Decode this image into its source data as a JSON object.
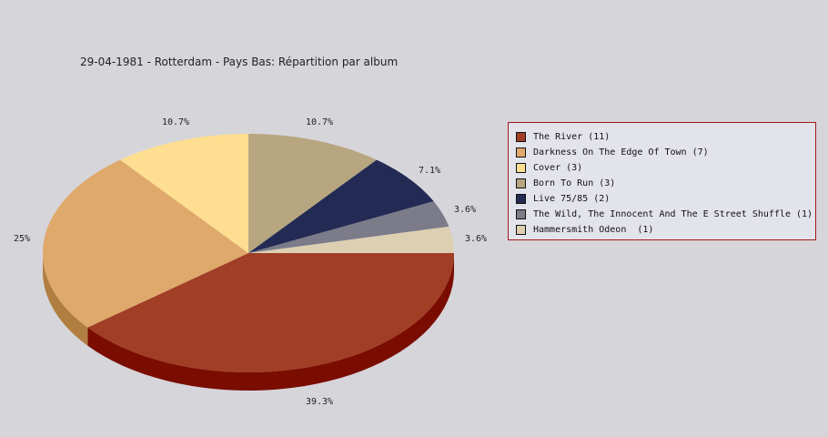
{
  "chart_data": {
    "type": "pie",
    "title": "29-04-1981 - Rotterdam - Pays Bas:  Répartition par album",
    "slices": [
      {
        "label": "The River (11)",
        "value": 11,
        "percent_label": "39.3%",
        "color": "#a03e26",
        "side_color": "#7a0c00"
      },
      {
        "label": "Darkness On The Edge Of Town (7)",
        "value": 7,
        "percent_label": "25%",
        "color": "#dfa96c",
        "side_color": "#b07e40"
      },
      {
        "label": "Cover (3)",
        "value": 3,
        "percent_label": "10.7%",
        "color": "#fede90",
        "side_color": "#c8aa60"
      },
      {
        "label": "Born To Run (3)",
        "value": 3,
        "percent_label": "10.7%",
        "color": "#b7a680",
        "side_color": "#8a7a58"
      },
      {
        "label": "Live 75/85 (2)",
        "value": 2,
        "percent_label": "7.1%",
        "color": "#232b55",
        "side_color": "#101830"
      },
      {
        "label": "The Wild, The Innocent And The E Street Shuffle (1)",
        "value": 1,
        "percent_label": "3.6%",
        "color": "#7b7b89",
        "side_color": "#55555f"
      },
      {
        "label": "Hammersmith Odeon  (1)",
        "value": 1,
        "percent_label": "3.6%",
        "color": "#dccfb2",
        "side_color": "#b0a488"
      }
    ],
    "legend_position": "right"
  }
}
